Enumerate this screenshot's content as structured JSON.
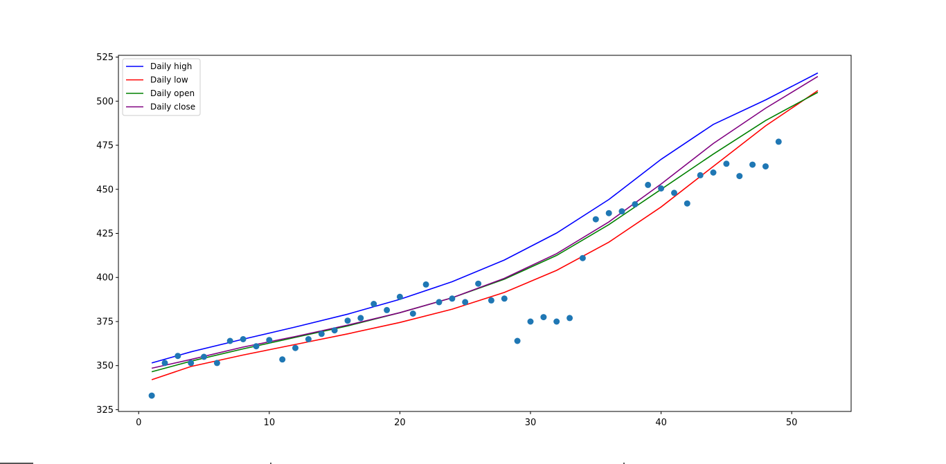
{
  "chart_data": {
    "type": "scatter",
    "title": "",
    "xlabel": "",
    "ylabel": "",
    "xlim": [
      -1.55,
      54.55
    ],
    "ylim": [
      324,
      526
    ],
    "xticks": [
      0,
      10,
      20,
      30,
      40,
      50
    ],
    "yticks": [
      325,
      350,
      375,
      400,
      425,
      450,
      475,
      500,
      525
    ],
    "grid": false,
    "legend_position": "upper left",
    "points": {
      "color": "#1f77b4",
      "x": [
        1,
        2,
        3,
        4,
        5,
        6,
        7,
        8,
        9,
        10,
        11,
        12,
        13,
        14,
        15,
        16,
        17,
        18,
        19,
        20,
        21,
        22,
        23,
        24,
        25,
        26,
        27,
        28,
        29,
        30,
        31,
        32,
        33,
        34,
        35,
        36,
        37,
        38,
        39,
        40,
        41,
        42,
        43,
        44,
        45,
        46,
        47,
        48,
        49
      ],
      "y": [
        333.0,
        351.5,
        355.5,
        351.5,
        355.0,
        351.5,
        364.0,
        365.0,
        361.0,
        364.5,
        353.5,
        360.0,
        365.0,
        368.0,
        370.0,
        375.5,
        377.0,
        385.0,
        381.5,
        389.0,
        379.5,
        396.0,
        386.0,
        388.0,
        386.0,
        396.5,
        387.0,
        388.0,
        364.0,
        375.0,
        377.5,
        375.0,
        377.0,
        411.0,
        433.0,
        436.5,
        437.5,
        441.5,
        452.5,
        450.5,
        448.0,
        442.0,
        458.0,
        459.5,
        464.5,
        457.5,
        464.0,
        463.0,
        477.0
      ]
    },
    "series": [
      {
        "name": "Daily high",
        "color": "#0000ff",
        "x": [
          1,
          4,
          8,
          12,
          16,
          20,
          24,
          28,
          32,
          36,
          40,
          44,
          48,
          52
        ],
        "values": [
          351.5,
          357.8,
          365.0,
          371.9,
          379.2,
          387.6,
          397.6,
          409.9,
          425.2,
          444.2,
          467.0,
          486.8,
          500.7,
          516.0
        ]
      },
      {
        "name": "Daily low",
        "color": "#ff0000",
        "x": [
          1,
          4,
          8,
          12,
          16,
          20,
          24,
          28,
          32,
          36,
          40,
          44,
          48,
          52
        ],
        "values": [
          342.0,
          349.5,
          356.0,
          362.0,
          368.0,
          374.5,
          382.0,
          391.5,
          404.0,
          420.0,
          440.0,
          463.0,
          486.0,
          506.0
        ]
      },
      {
        "name": "Daily open",
        "color": "#008000",
        "x": [
          1,
          4,
          8,
          12,
          16,
          20,
          24,
          28,
          32,
          36,
          40,
          44,
          48,
          52
        ],
        "values": [
          346.5,
          352.5,
          359.5,
          366.0,
          372.5,
          380.0,
          388.5,
          399.0,
          412.5,
          430.0,
          450.0,
          470.0,
          489.0,
          505.0
        ]
      },
      {
        "name": "Daily close",
        "color": "#800080",
        "x": [
          1,
          4,
          8,
          12,
          16,
          20,
          24,
          28,
          32,
          36,
          40,
          44,
          48,
          52
        ],
        "values": [
          348.5,
          353.5,
          360.5,
          366.5,
          373.0,
          380.0,
          388.5,
          399.5,
          413.5,
          431.5,
          453.0,
          476.0,
          496.0,
          514.0
        ]
      }
    ]
  }
}
